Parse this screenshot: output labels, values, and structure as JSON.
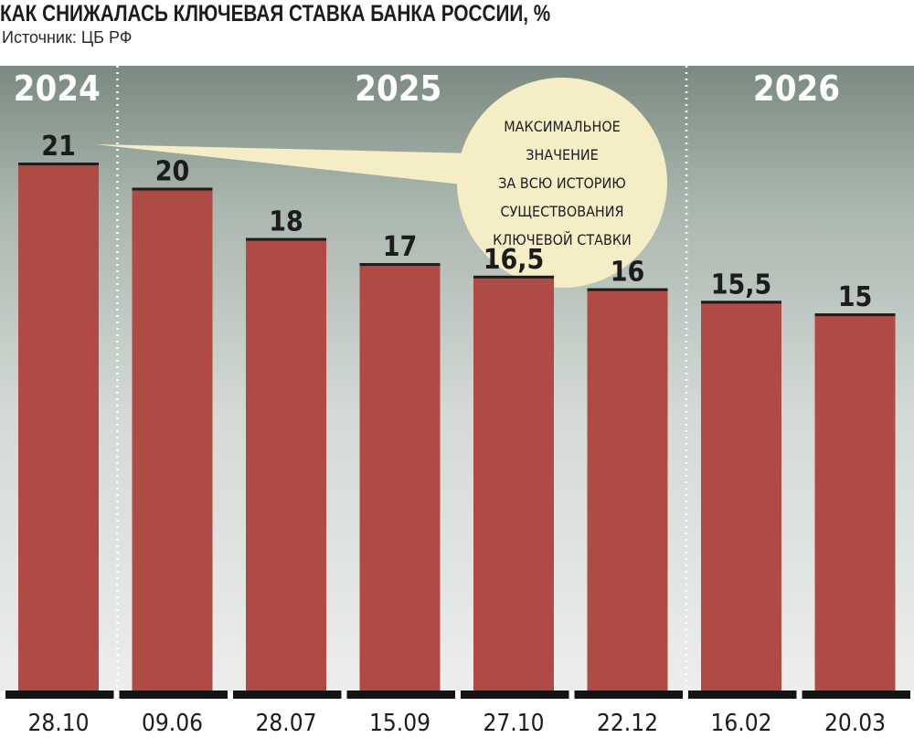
{
  "header": {
    "title": "КАК СНИЖАЛАСЬ КЛЮЧЕВАЯ СТАВКА БАНКА РОССИИ, %",
    "source": "Источник: ЦБ РФ"
  },
  "colors": {
    "bar": "#b04a44",
    "background_top": "#7b8a81",
    "background_bottom": "#eceeec",
    "callout_fill": "#f5edc6",
    "axis": "#141414"
  },
  "chart_data": {
    "type": "bar",
    "title": "КАК СНИЖАЛАСЬ КЛЮЧЕВАЯ СТАВКА БАНКА РОССИИ, %",
    "categories": [
      "28.10",
      "09.06",
      "28.07",
      "15.09",
      "27.10",
      "22.12",
      "16.02",
      "20.03"
    ],
    "values": [
      21,
      20,
      18,
      17,
      16.5,
      16,
      15.5,
      15
    ],
    "value_labels": [
      "21",
      "20",
      "18",
      "17",
      "16,5",
      "16",
      "15,5",
      "15"
    ],
    "year_groups": [
      {
        "label": "2024",
        "first": 0,
        "last": 0
      },
      {
        "label": "2025",
        "first": 1,
        "last": 5
      },
      {
        "label": "2026",
        "first": 6,
        "last": 7
      }
    ],
    "ylim": [
      0,
      21
    ],
    "grid": false,
    "annotation": {
      "target_index": 0,
      "lines": [
        "МАКСИМАЛЬНОЕ",
        "ЗНАЧЕНИЕ",
        "ЗА ВСЮ ИСТОРИЮ",
        "СУЩЕСТВОВАНИЯ",
        "КЛЮЧЕВОЙ СТАВКИ"
      ]
    }
  }
}
